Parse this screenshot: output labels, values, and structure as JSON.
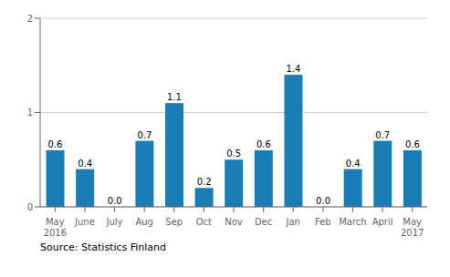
{
  "chart_data": {
    "type": "bar",
    "categories": [
      "May\n2016",
      "June",
      "July",
      "Aug",
      "Sep",
      "Oct",
      "Nov",
      "Dec",
      "Jan",
      "Feb",
      "March",
      "April",
      "May\n2017"
    ],
    "values": [
      0.6,
      0.4,
      0.0,
      0.7,
      1.1,
      0.2,
      0.5,
      0.6,
      1.4,
      0.0,
      0.4,
      0.7,
      0.6
    ],
    "value_labels": [
      "0.6",
      "0.4",
      "0.0",
      "0.7",
      "1.1",
      "0.2",
      "0.5",
      "0.6",
      "1.4",
      "0.0",
      "0.4",
      "0.7",
      "0.6"
    ],
    "data_labels": true,
    "color": "#1a7db5",
    "ylim": [
      0,
      2
    ],
    "yticks": [
      0,
      1,
      2
    ],
    "grid": true,
    "annotations": [
      "Source: Statistics Finland"
    ]
  }
}
